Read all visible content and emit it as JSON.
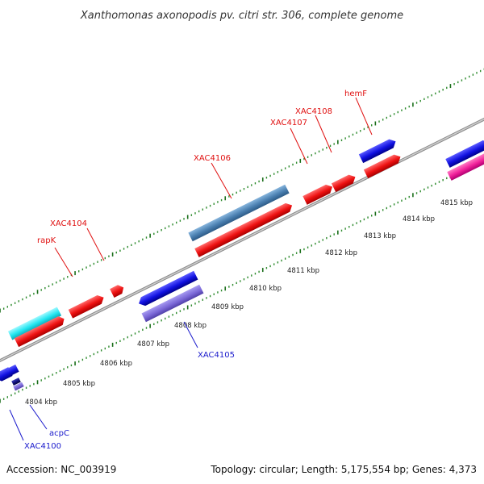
{
  "header": {
    "title": "Xanthomonas axonopodis pv. citri str. 306, complete genome"
  },
  "footer": {
    "accession": "Accession: NC_003919",
    "summary": "Topology: circular; Length: 5,175,554 bp; Genes: 4,373"
  },
  "ruler": {
    "unit": "kbp",
    "ticks": [
      "4804 kbp",
      "4805 kbp",
      "4806 kbp",
      "4807 kbp",
      "4808 kbp",
      "4809 kbp",
      "4810 kbp",
      "4811 kbp",
      "4812 kbp",
      "4813 kbp",
      "4814 kbp",
      "4815 kbp"
    ]
  },
  "forward_labels": [
    "rapK",
    "XAC4104",
    "XAC4106",
    "XAC4107",
    "XAC4108",
    "hemF"
  ],
  "reverse_labels": [
    "XAC4100",
    "acpC",
    "XAC4105"
  ],
  "colors": {
    "backbone": "#8c8c8c",
    "forward_gene": "#ee1111",
    "reverse_gene": "#1010e0",
    "forward_label": "#e01010",
    "reverse_label": "#1a1acc",
    "tick": "#1f7a1f",
    "rrna": "#4a7fb0",
    "cyan_feature": "#22e6f0",
    "purple_feature": "#7b68d8",
    "pink_feature": "#f0209a",
    "navy_feature": "#101078"
  }
}
